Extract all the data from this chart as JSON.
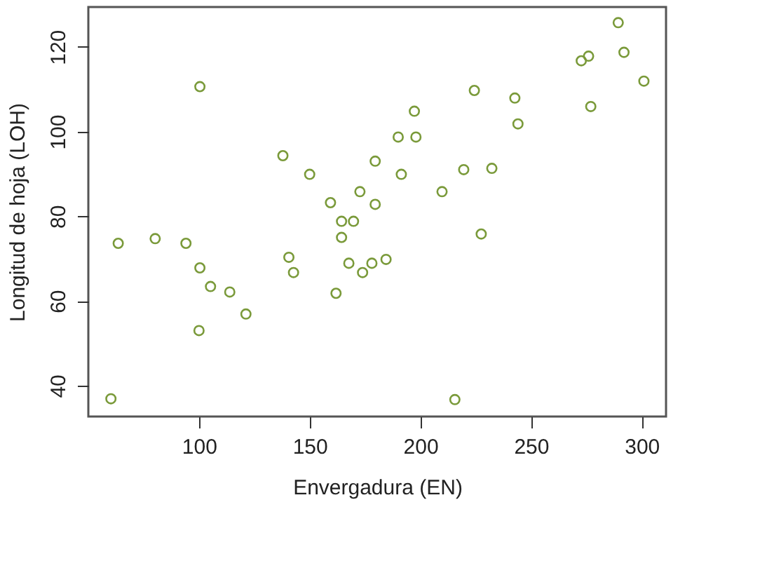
{
  "chart_data": {
    "type": "scatter",
    "xlabel": "Envergadura (EN)",
    "ylabel": "Longitud de hoja (LOH)",
    "marker": "circle",
    "grid": false,
    "xlim": [
      50,
      311
    ],
    "ylim": [
      32.7,
      129.4
    ],
    "xticks": [
      100,
      150,
      200,
      250,
      300
    ],
    "yticks": [
      40,
      60,
      80,
      100,
      120
    ],
    "series": [
      {
        "color": "#7a9a3a",
        "x": [
          100.4,
          63.5,
          80.2,
          94.1,
          100.4,
          105.2,
          113.9,
          121.2,
          100,
          60.2,
          137.9,
          150,
          159.4,
          179.6,
          172.7,
          179.6,
          164.4,
          169.8,
          164.4,
          140.6,
          142.7,
          167.7,
          173.9,
          178.1,
          161.9,
          184.5,
          197.3,
          190,
          198,
          191.4,
          209.8,
          219.6,
          232.3,
          227.5,
          224.4,
          242.7,
          244.1,
          215.6,
          272.7,
          276,
          277,
          289.4,
          292,
          301
        ],
        "values": [
          110.6,
          73.6,
          74.7,
          73.6,
          67.8,
          63.4,
          62.1,
          56.9,
          53,
          36.9,
          94.3,
          89.9,
          83.2,
          93,
          85.8,
          82.8,
          78.8,
          78.8,
          75,
          70.3,
          66.7,
          68.9,
          66.7,
          68.9,
          61.8,
          69.8,
          104.8,
          98.7,
          98.7,
          89.9,
          85.8,
          91,
          91.3,
          75.8,
          109.7,
          107.9,
          101.8,
          36.7,
          116.7,
          117.8,
          105.9,
          125.7,
          118.7,
          111.9
        ]
      }
    ]
  }
}
